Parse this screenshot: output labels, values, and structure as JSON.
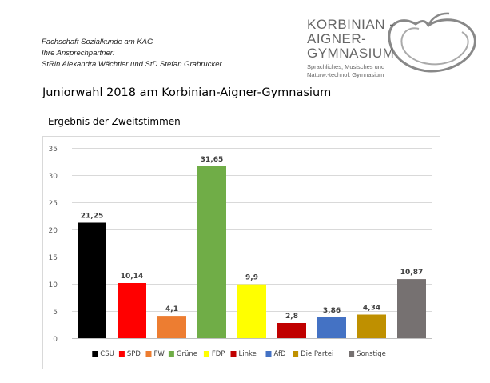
{
  "header": {
    "lines": [
      "Fachschaft Sozialkunde am KAG",
      "Ihre Ansprechpartner:",
      "StRin Alexandra Wächtler und StD Stefan Grabrucker"
    ]
  },
  "logo": {
    "lines": [
      "KORBINIAN -",
      "AIGNER-",
      "GYMNASIUM"
    ],
    "sub": [
      "Sprachliches, Musisches und",
      "Naturw.-technol. Gymnasium"
    ]
  },
  "page_title": "Juniorwahl 2018 am Korbinian-Aigner-Gymnasium",
  "chart_data": {
    "type": "bar",
    "title": "Ergebnis der Zweitstimmen",
    "categories": [
      "CSU",
      "SPD",
      "FW",
      "Grüne",
      "FDP",
      "Linke",
      "AfD",
      "Die Partei",
      "Sonstige"
    ],
    "values": [
      21.25,
      10.14,
      4.1,
      31.65,
      9.9,
      2.8,
      3.86,
      4.34,
      10.87
    ],
    "value_labels": [
      "21,25",
      "10,14",
      "4,1",
      "31,65",
      "9,9",
      "2,8",
      "3,86",
      "4,34",
      "10,87"
    ],
    "colors": [
      "#000000",
      "#ff0000",
      "#ed7d31",
      "#70ad47",
      "#ffff00",
      "#c00000",
      "#4472c4",
      "#bf9000",
      "#767171"
    ],
    "ylim": [
      0,
      35
    ],
    "yticks": [
      0,
      5,
      10,
      15,
      20,
      25,
      30,
      35
    ],
    "grid": true,
    "legend": "bottom",
    "xlabel": "",
    "ylabel": ""
  }
}
